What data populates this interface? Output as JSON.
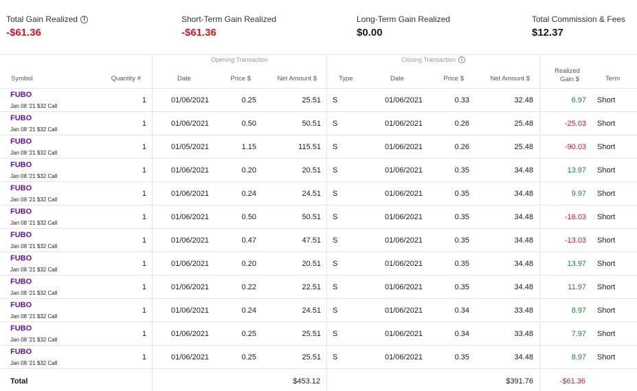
{
  "summary": [
    {
      "label": "Total Gain Realized",
      "value": "-$61.36",
      "tone": "neg",
      "info": true
    },
    {
      "label": "Short-Term Gain Realized",
      "value": "-$61.36",
      "tone": "neg",
      "info": false
    },
    {
      "label": "Long-Term Gain Realized",
      "value": "$0.00",
      "tone": "dark",
      "info": false
    },
    {
      "label": "Total Commission & Fees",
      "value": "$12.37",
      "tone": "dark",
      "info": false
    }
  ],
  "groups": {
    "opening": "Opening Transaction",
    "closing": "Closing Transaction"
  },
  "headers": {
    "symbol": "Symbol",
    "quantity": "Quantity #",
    "open_date": "Date",
    "open_price": "Price $",
    "open_net": "Net Amount $",
    "type": "Type",
    "close_date": "Date",
    "close_price": "Price $",
    "close_net": "Net Amount $",
    "gain_line1": "Realized",
    "gain_line2": "Gain $",
    "term": "Term"
  },
  "rows": [
    {
      "symbol": "FUBO",
      "desc": "Jan 08 '21 $32 Call",
      "qty": "1",
      "open_date": "01/06/2021",
      "open_price": "0.25",
      "open_net": "25.51",
      "type": "S",
      "close_date": "01/06/2021",
      "close_price": "0.33",
      "close_net": "32.48",
      "gain": "6.97",
      "gain_tone": "pos",
      "term": "Short"
    },
    {
      "symbol": "FUBO",
      "desc": "Jan 08 '21 $32 Call",
      "qty": "1",
      "open_date": "01/06/2021",
      "open_price": "0.50",
      "open_net": "50.51",
      "type": "S",
      "close_date": "01/06/2021",
      "close_price": "0.26",
      "close_net": "25.48",
      "gain": "-25.03",
      "gain_tone": "neg",
      "term": "Short"
    },
    {
      "symbol": "FUBO",
      "desc": "Jan 08 '21 $32 Call",
      "qty": "1",
      "open_date": "01/05/2021",
      "open_price": "1.15",
      "open_net": "115.51",
      "type": "S",
      "close_date": "01/06/2021",
      "close_price": "0.26",
      "close_net": "25.48",
      "gain": "-90.03",
      "gain_tone": "neg",
      "term": "Short"
    },
    {
      "symbol": "FUBO",
      "desc": "Jan 08 '21 $32 Call",
      "qty": "1",
      "open_date": "01/06/2021",
      "open_price": "0.20",
      "open_net": "20.51",
      "type": "S",
      "close_date": "01/06/2021",
      "close_price": "0.35",
      "close_net": "34.48",
      "gain": "13.97",
      "gain_tone": "pos",
      "term": "Short"
    },
    {
      "symbol": "FUBO",
      "desc": "Jan 08 '21 $32 Call",
      "qty": "1",
      "open_date": "01/06/2021",
      "open_price": "0.24",
      "open_net": "24.51",
      "type": "S",
      "close_date": "01/06/2021",
      "close_price": "0.35",
      "close_net": "34.48",
      "gain": "9.97",
      "gain_tone": "pos",
      "term": "Short"
    },
    {
      "symbol": "FUBO",
      "desc": "Jan 08 '21 $32 Call",
      "qty": "1",
      "open_date": "01/06/2021",
      "open_price": "0.50",
      "open_net": "50.51",
      "type": "S",
      "close_date": "01/06/2021",
      "close_price": "0.35",
      "close_net": "34.48",
      "gain": "-16.03",
      "gain_tone": "neg",
      "term": "Short"
    },
    {
      "symbol": "FUBO",
      "desc": "Jan 08 '21 $32 Call",
      "qty": "1",
      "open_date": "01/06/2021",
      "open_price": "0.47",
      "open_net": "47.51",
      "type": "S",
      "close_date": "01/06/2021",
      "close_price": "0.35",
      "close_net": "34.48",
      "gain": "-13.03",
      "gain_tone": "neg",
      "term": "Short"
    },
    {
      "symbol": "FUBO",
      "desc": "Jan 08 '21 $32 Call",
      "qty": "1",
      "open_date": "01/06/2021",
      "open_price": "0.20",
      "open_net": "20.51",
      "type": "S",
      "close_date": "01/06/2021",
      "close_price": "0.35",
      "close_net": "34.48",
      "gain": "13.97",
      "gain_tone": "pos",
      "term": "Short"
    },
    {
      "symbol": "FUBO",
      "desc": "Jan 08 '21 $32 Call",
      "qty": "1",
      "open_date": "01/06/2021",
      "open_price": "0.22",
      "open_net": "22.51",
      "type": "S",
      "close_date": "01/06/2021",
      "close_price": "0.35",
      "close_net": "34.48",
      "gain": "11.97",
      "gain_tone": "pos",
      "term": "Short"
    },
    {
      "symbol": "FUBO",
      "desc": "Jan 08 '21 $32 Call",
      "qty": "1",
      "open_date": "01/06/2021",
      "open_price": "0.24",
      "open_net": "24.51",
      "type": "S",
      "close_date": "01/06/2021",
      "close_price": "0.34",
      "close_net": "33.48",
      "gain": "8.97",
      "gain_tone": "pos",
      "term": "Short"
    },
    {
      "symbol": "FUBO",
      "desc": "Jan 08 '21 $32 Call",
      "qty": "1",
      "open_date": "01/06/2021",
      "open_price": "0.25",
      "open_net": "25.51",
      "type": "S",
      "close_date": "01/06/2021",
      "close_price": "0.34",
      "close_net": "33.48",
      "gain": "7.97",
      "gain_tone": "pos",
      "term": "Short"
    },
    {
      "symbol": "FUBO",
      "desc": "Jan 08 '21 $32 Call",
      "qty": "1",
      "open_date": "01/06/2021",
      "open_price": "0.25",
      "open_net": "25.51",
      "type": "S",
      "close_date": "01/06/2021",
      "close_price": "0.35",
      "close_net": "34.48",
      "gain": "8.97",
      "gain_tone": "pos",
      "term": "Short"
    }
  ],
  "total": {
    "label": "Total",
    "open_net": "$453.12",
    "close_net": "$391.76",
    "gain": "-$61.36",
    "gain_tone": "neg"
  },
  "colors": {
    "negative": "#d9161e",
    "positive": "#1a8a2a",
    "symbol": "#6a0dad",
    "divider": "#e3e3e3"
  },
  "icons": {
    "info": "info-icon"
  }
}
